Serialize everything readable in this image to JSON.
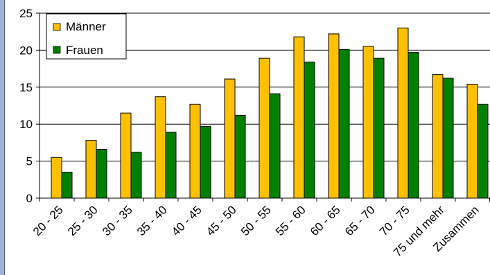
{
  "chart_data": {
    "type": "bar",
    "title": "",
    "xlabel": "",
    "ylabel": "",
    "ylim": [
      0,
      25
    ],
    "yticks": [
      0,
      5,
      10,
      15,
      20,
      25
    ],
    "grid": "horizontal",
    "legend_position": "top-left",
    "categories": [
      "20 - 25",
      "25 - 30",
      "30 - 35",
      "35 - 40",
      "40 - 45",
      "45 - 50",
      "50 - 55",
      "55 - 60",
      "60 - 65",
      "65 - 70",
      "70 - 75",
      "75 und mehr",
      "Zusammen"
    ],
    "series": [
      {
        "name": "Männer",
        "color": "#ffc000",
        "values": [
          5.5,
          7.8,
          11.5,
          13.7,
          12.7,
          16.1,
          18.9,
          21.8,
          22.2,
          20.5,
          23.0,
          16.7,
          15.4
        ]
      },
      {
        "name": "Frauen",
        "color": "#008000",
        "values": [
          3.5,
          6.6,
          6.2,
          8.9,
          9.7,
          11.2,
          14.1,
          18.4,
          20.1,
          18.9,
          19.7,
          16.2,
          12.7
        ]
      }
    ]
  }
}
